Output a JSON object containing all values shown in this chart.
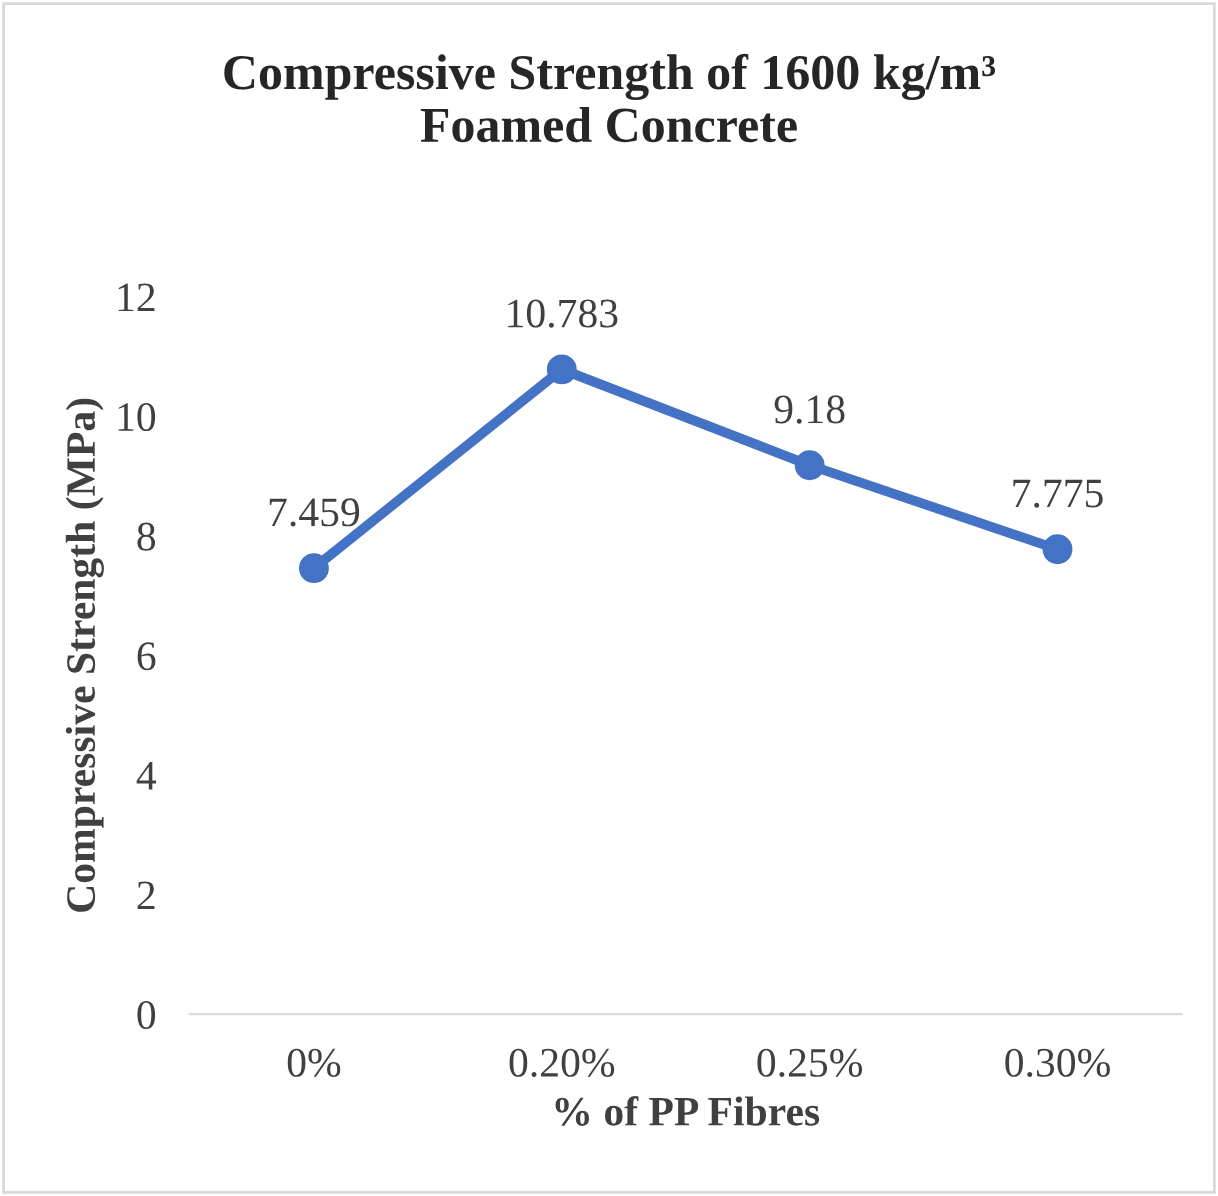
{
  "chart_data": {
    "type": "line",
    "title": "Compressive Strength of 1600 kg/m³\nFoamed Concrete",
    "xlabel": "% of PP Fibres",
    "ylabel": "Compressive Strength (MPa)",
    "categories": [
      "0%",
      "0.20%",
      "0.25%",
      "0.30%"
    ],
    "series": [
      {
        "color": "#4472c4",
        "values": [
          7.459,
          10.783,
          9.18,
          7.775
        ]
      }
    ],
    "ylim": [
      0,
      12
    ],
    "yticks": [
      0,
      2,
      4,
      6,
      8,
      10,
      12
    ],
    "data_labels": true,
    "marker": "circle",
    "line_style": "solid",
    "grid": false
  }
}
